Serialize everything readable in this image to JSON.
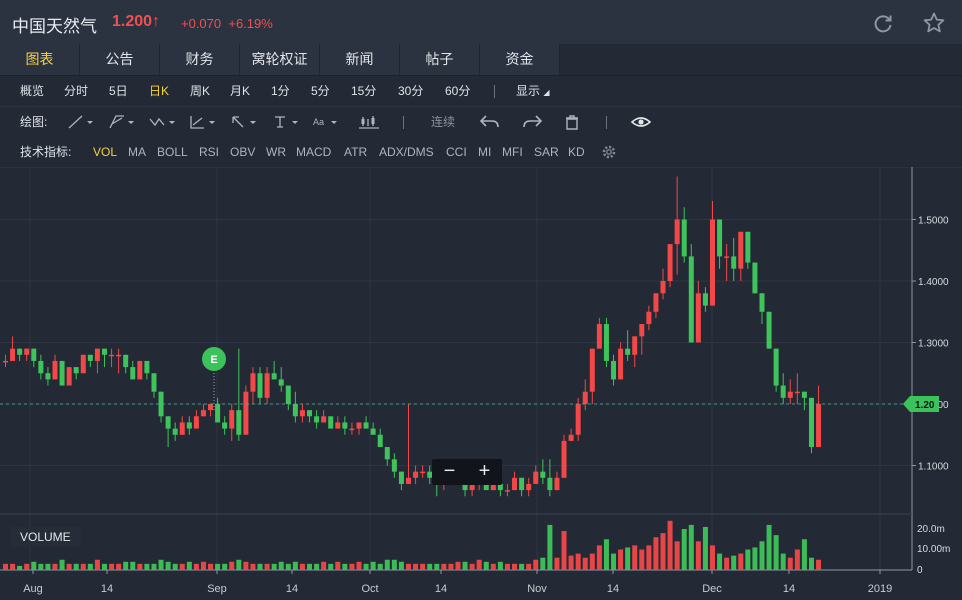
{
  "header": {
    "name": "中国天然气",
    "price": "1.200",
    "arrow": "↑",
    "change": "+0.070",
    "change_pct": "+6.19%",
    "refresh_icon": "refresh-icon",
    "star_icon": "star-icon"
  },
  "tabs": [
    "图表",
    "公告",
    "财务",
    "窝轮权证",
    "新闻",
    "帖子",
    "资金"
  ],
  "periods": [
    "概览",
    "分时",
    "5日",
    "日K",
    "周K",
    "月K",
    "1分",
    "5分",
    "15分",
    "30分",
    "60分"
  ],
  "display_label": "显示",
  "draw_label": "绘图:",
  "draw_tools": {
    "continuous": "连续",
    "font_tool": "Aa"
  },
  "indicator_label": "技术指标:",
  "indicators": [
    "VOL",
    "MA",
    "BOLL",
    "RSI",
    "OBV",
    "WR",
    "MACD",
    "ATR",
    "ADX/DMS",
    "CCI",
    "MI",
    "MFI",
    "SAR",
    "KD"
  ],
  "volume_label": "VOLUME",
  "zoom": {
    "minus": "−",
    "plus": "+"
  },
  "colors": {
    "up": "#f24848",
    "down": "#3ec45a",
    "accent": "#f5d33c",
    "bg": "#232a35"
  },
  "chart_data": {
    "type": "candlestick",
    "price_ticks": [
      "1.5000",
      "1.4000",
      "1.3000",
      "1.2000",
      "1.1000"
    ],
    "current_price_label": "1.20",
    "volume_ticks": [
      "20.0m",
      "10.00m",
      "0"
    ],
    "x_ticks": [
      "Aug",
      "14",
      "Sep",
      "14",
      "Oct",
      "14",
      "Nov",
      "14",
      "Dec",
      "14",
      "2019"
    ],
    "event_marker": "E",
    "candles": [
      [
        1.27,
        1.28,
        1.26,
        1.27,
        3
      ],
      [
        1.27,
        1.31,
        1.27,
        1.29,
        3
      ],
      [
        1.29,
        1.29,
        1.27,
        1.28,
        2
      ],
      [
        1.28,
        1.29,
        1.27,
        1.29,
        3
      ],
      [
        1.29,
        1.29,
        1.26,
        1.27,
        4
      ],
      [
        1.27,
        1.28,
        1.24,
        1.25,
        3
      ],
      [
        1.25,
        1.26,
        1.23,
        1.24,
        3
      ],
      [
        1.24,
        1.28,
        1.24,
        1.27,
        3
      ],
      [
        1.27,
        1.27,
        1.23,
        1.23,
        5
      ],
      [
        1.23,
        1.26,
        1.23,
        1.26,
        3
      ],
      [
        1.26,
        1.26,
        1.24,
        1.25,
        3
      ],
      [
        1.25,
        1.28,
        1.25,
        1.28,
        3
      ],
      [
        1.28,
        1.28,
        1.26,
        1.27,
        3
      ],
      [
        1.27,
        1.29,
        1.25,
        1.29,
        5
      ],
      [
        1.29,
        1.29,
        1.26,
        1.28,
        3
      ],
      [
        1.28,
        1.29,
        1.26,
        1.28,
        3
      ],
      [
        1.28,
        1.29,
        1.25,
        1.28,
        3
      ],
      [
        1.28,
        1.28,
        1.25,
        1.26,
        4
      ],
      [
        1.26,
        1.27,
        1.24,
        1.24,
        4
      ],
      [
        1.24,
        1.27,
        1.24,
        1.27,
        3
      ],
      [
        1.27,
        1.27,
        1.24,
        1.25,
        3
      ],
      [
        1.25,
        1.25,
        1.21,
        1.22,
        3
      ],
      [
        1.22,
        1.22,
        1.17,
        1.18,
        5
      ],
      [
        1.18,
        1.18,
        1.13,
        1.16,
        4
      ],
      [
        1.16,
        1.17,
        1.14,
        1.15,
        3
      ],
      [
        1.15,
        1.18,
        1.15,
        1.17,
        3
      ],
      [
        1.17,
        1.18,
        1.15,
        1.16,
        4
      ],
      [
        1.16,
        1.19,
        1.16,
        1.18,
        3
      ],
      [
        1.18,
        1.2,
        1.18,
        1.19,
        4
      ],
      [
        1.19,
        1.2,
        1.18,
        1.2,
        3
      ],
      [
        1.2,
        1.21,
        1.17,
        1.17,
        3
      ],
      [
        1.17,
        1.18,
        1.15,
        1.16,
        3
      ],
      [
        1.16,
        1.2,
        1.14,
        1.19,
        4
      ],
      [
        1.19,
        1.29,
        1.14,
        1.15,
        5
      ],
      [
        1.15,
        1.23,
        1.15,
        1.22,
        4
      ],
      [
        1.22,
        1.26,
        1.2,
        1.25,
        3
      ],
      [
        1.25,
        1.26,
        1.2,
        1.21,
        3
      ],
      [
        1.21,
        1.26,
        1.2,
        1.25,
        3
      ],
      [
        1.25,
        1.27,
        1.24,
        1.24,
        3
      ],
      [
        1.24,
        1.26,
        1.22,
        1.23,
        4
      ],
      [
        1.23,
        1.23,
        1.19,
        1.2,
        3
      ],
      [
        1.2,
        1.22,
        1.17,
        1.18,
        4
      ],
      [
        1.18,
        1.2,
        1.17,
        1.19,
        3
      ],
      [
        1.19,
        1.19,
        1.17,
        1.18,
        3
      ],
      [
        1.18,
        1.19,
        1.16,
        1.17,
        3
      ],
      [
        1.17,
        1.19,
        1.17,
        1.18,
        4
      ],
      [
        1.18,
        1.18,
        1.16,
        1.16,
        3
      ],
      [
        1.16,
        1.18,
        1.16,
        1.17,
        4
      ],
      [
        1.17,
        1.18,
        1.15,
        1.16,
        3
      ],
      [
        1.16,
        1.17,
        1.15,
        1.16,
        3
      ],
      [
        1.16,
        1.17,
        1.15,
        1.17,
        4
      ],
      [
        1.17,
        1.18,
        1.16,
        1.16,
        3
      ],
      [
        1.16,
        1.17,
        1.15,
        1.15,
        4
      ],
      [
        1.15,
        1.16,
        1.13,
        1.13,
        3
      ],
      [
        1.13,
        1.13,
        1.1,
        1.11,
        5
      ],
      [
        1.11,
        1.12,
        1.08,
        1.09,
        5
      ],
      [
        1.09,
        1.09,
        1.06,
        1.07,
        4
      ],
      [
        1.07,
        1.2,
        1.07,
        1.08,
        3
      ],
      [
        1.08,
        1.1,
        1.07,
        1.09,
        3
      ],
      [
        1.09,
        1.1,
        1.08,
        1.09,
        3
      ],
      [
        1.09,
        1.1,
        1.07,
        1.08,
        3
      ],
      [
        1.08,
        1.09,
        1.05,
        1.07,
        3
      ],
      [
        1.07,
        1.09,
        1.06,
        1.08,
        3
      ],
      [
        1.08,
        1.09,
        1.07,
        1.08,
        3
      ],
      [
        1.08,
        1.09,
        1.07,
        1.08,
        4
      ],
      [
        1.08,
        1.08,
        1.05,
        1.06,
        4
      ],
      [
        1.06,
        1.08,
        1.05,
        1.07,
        3
      ],
      [
        1.07,
        1.09,
        1.06,
        1.08,
        5
      ],
      [
        1.08,
        1.09,
        1.06,
        1.06,
        4
      ],
      [
        1.06,
        1.08,
        1.06,
        1.07,
        3
      ],
      [
        1.07,
        1.08,
        1.05,
        1.06,
        4
      ],
      [
        1.06,
        1.07,
        1.05,
        1.06,
        3
      ],
      [
        1.06,
        1.09,
        1.06,
        1.08,
        3
      ],
      [
        1.08,
        1.08,
        1.05,
        1.06,
        3
      ],
      [
        1.06,
        1.08,
        1.05,
        1.07,
        3
      ],
      [
        1.07,
        1.1,
        1.07,
        1.09,
        5
      ],
      [
        1.09,
        1.11,
        1.07,
        1.08,
        6
      ],
      [
        1.08,
        1.11,
        1.05,
        1.06,
        22
      ],
      [
        1.06,
        1.09,
        1.06,
        1.08,
        6
      ],
      [
        1.08,
        1.15,
        1.08,
        1.14,
        19
      ],
      [
        1.14,
        1.16,
        1.14,
        1.15,
        7
      ],
      [
        1.15,
        1.21,
        1.14,
        1.2,
        8
      ],
      [
        1.2,
        1.24,
        1.19,
        1.22,
        6
      ],
      [
        1.22,
        1.29,
        1.2,
        1.29,
        8
      ],
      [
        1.29,
        1.34,
        1.29,
        1.33,
        12
      ],
      [
        1.33,
        1.34,
        1.26,
        1.27,
        15
      ],
      [
        1.27,
        1.28,
        1.23,
        1.24,
        8
      ],
      [
        1.24,
        1.3,
        1.24,
        1.29,
        10
      ],
      [
        1.29,
        1.32,
        1.27,
        1.28,
        11
      ],
      [
        1.28,
        1.31,
        1.26,
        1.31,
        12
      ],
      [
        1.31,
        1.33,
        1.28,
        1.33,
        10
      ],
      [
        1.33,
        1.36,
        1.32,
        1.35,
        12
      ],
      [
        1.35,
        1.38,
        1.34,
        1.38,
        16
      ],
      [
        1.38,
        1.42,
        1.37,
        1.4,
        18
      ],
      [
        1.4,
        1.46,
        1.39,
        1.46,
        24
      ],
      [
        1.46,
        1.57,
        1.41,
        1.5,
        14
      ],
      [
        1.5,
        1.52,
        1.43,
        1.44,
        20
      ],
      [
        1.44,
        1.46,
        1.3,
        1.3,
        22
      ],
      [
        1.3,
        1.4,
        1.3,
        1.38,
        14
      ],
      [
        1.38,
        1.39,
        1.35,
        1.36,
        21
      ],
      [
        1.36,
        1.53,
        1.36,
        1.5,
        12
      ],
      [
        1.5,
        1.5,
        1.42,
        1.44,
        8
      ],
      [
        1.44,
        1.46,
        1.4,
        1.44,
        6
      ],
      [
        1.44,
        1.47,
        1.4,
        1.42,
        7
      ],
      [
        1.42,
        1.48,
        1.4,
        1.48,
        8
      ],
      [
        1.48,
        1.48,
        1.42,
        1.43,
        10
      ],
      [
        1.43,
        1.43,
        1.38,
        1.38,
        11
      ],
      [
        1.38,
        1.38,
        1.33,
        1.35,
        14
      ],
      [
        1.35,
        1.35,
        1.29,
        1.29,
        22
      ],
      [
        1.29,
        1.29,
        1.22,
        1.23,
        17
      ],
      [
        1.23,
        1.25,
        1.2,
        1.21,
        8
      ],
      [
        1.21,
        1.24,
        1.2,
        1.22,
        6
      ],
      [
        1.22,
        1.25,
        1.2,
        1.22,
        10
      ],
      [
        1.22,
        1.22,
        1.19,
        1.21,
        15
      ],
      [
        1.21,
        1.21,
        1.12,
        1.13,
        6
      ],
      [
        1.13,
        1.23,
        1.13,
        1.2,
        5
      ]
    ]
  }
}
